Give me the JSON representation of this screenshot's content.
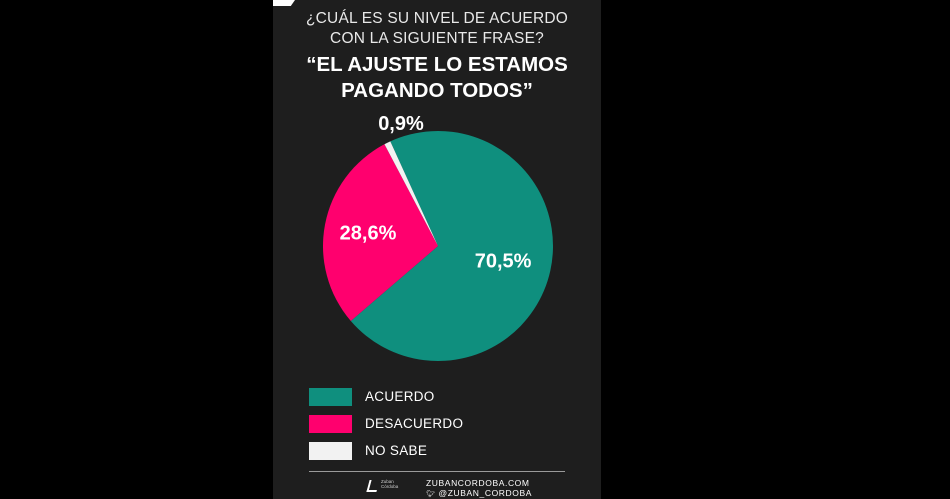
{
  "question": {
    "line1": "¿CUÁL ES SU NIVEL DE ACUERDO",
    "line2": "CON LA SIGUIENTE FRASE?"
  },
  "quote": {
    "line1": "“EL AJUSTE LO ESTAMOS",
    "line2": "PAGANDO TODOS”"
  },
  "chart_data": {
    "type": "pie",
    "slices": [
      {
        "name": "ACUERDO",
        "value": 70.5,
        "label": "70,5%",
        "color": "#0f8f7e"
      },
      {
        "name": "DESACUERDO",
        "value": 28.6,
        "label": "28,6%",
        "color": "#ff006e"
      },
      {
        "name": "NO SABE",
        "value": 0.9,
        "label": "0,9%",
        "color": "#f2f2f2"
      }
    ],
    "legend": [
      "ACUERDO",
      "DESACUERDO",
      "NO SABE"
    ],
    "legend_position": "bottom-left"
  },
  "footer": {
    "logo_text": "Zuban Córdoba",
    "website": "ZUBANCORDOBA.COM",
    "handle": "@ZUBAN_CORDOBA"
  },
  "icons": {
    "social": "twitter-bird-icon",
    "brand": "zuban-cordoba-logo"
  }
}
